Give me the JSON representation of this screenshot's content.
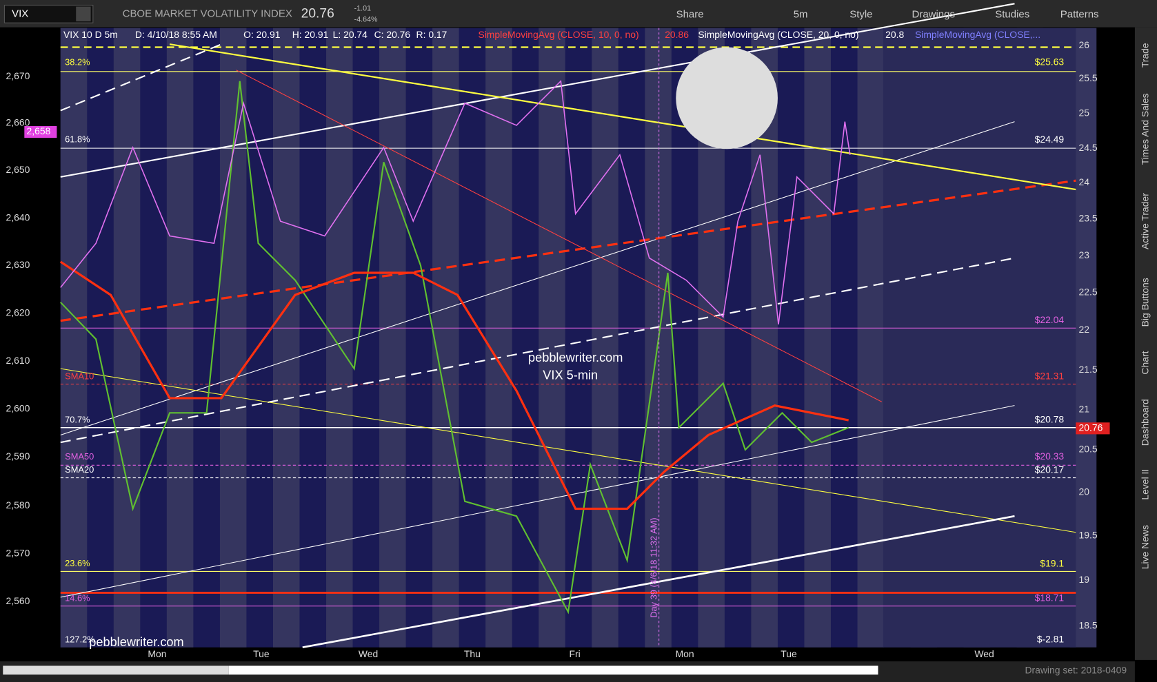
{
  "toolbar": {
    "symbol": "VIX",
    "title": "CBOE MARKET VOLATILITY INDEX",
    "last": "20.76",
    "change": "-1.01",
    "change_pct": "-4.64%",
    "buttons": [
      "Share",
      "5m",
      "Style",
      "Drawings",
      "Studies",
      "Patterns"
    ]
  },
  "info": [
    "VIX 10 D 5m",
    "D: 4/10/18 8:55 AM",
    "O: 20.91",
    "H: 20.91",
    "L: 20.74",
    "C: 20.76",
    "R: 0.17",
    "SimpleMovingAvg (CLOSE, 10, 0, no)",
    "20.86",
    "SimpleMovingAvg (CLOSE, 20, 0, no)",
    "20.8",
    "SimpleMovingAvg (CLOSE,..."
  ],
  "left_axis": [
    "2,670",
    "2,660",
    "2,650",
    "2,640",
    "2,630",
    "2,620",
    "2,610",
    "2,600",
    "2,590",
    "2,580",
    "2,570",
    "2,560"
  ],
  "left_highlight": "2,658",
  "right_axis": [
    "26",
    "25.5",
    "25",
    "24.5",
    "24",
    "23.5",
    "23",
    "22.5",
    "22",
    "21.5",
    "21",
    "20.5",
    "20",
    "19.5",
    "19",
    "18.5"
  ],
  "right_highlight": "20.76",
  "level_labels": [
    "38.2%",
    "61.8%",
    "SMA10",
    "70.7%",
    "SMA50",
    "SMA20",
    "23.6%",
    "14.6%",
    "127.2%"
  ],
  "level_prices": [
    "$25.63",
    "$24.49",
    "$22.04",
    "$21.31",
    "$20.78",
    "$20.33",
    "$20.17",
    "$19.1",
    "$18.71",
    "$-2.81"
  ],
  "days": [
    "Mon",
    "Tue",
    "Wed",
    "Thu",
    "Fri",
    "Mon",
    "Tue",
    "Wed"
  ],
  "watermarks": [
    "pebblewriter.com",
    "VIX 5-min",
    "pebblewriter.com"
  ],
  "day_note": "Day 39 (4/6/18 11:32 AM)",
  "sidebar": [
    "Trade",
    "Times And Sales",
    "Active Trader",
    "Big Buttons",
    "Chart",
    "Dashboard",
    "Level II",
    "Live News"
  ],
  "footer": {
    "drawing_set": "Drawing set: 2018-0409"
  }
}
